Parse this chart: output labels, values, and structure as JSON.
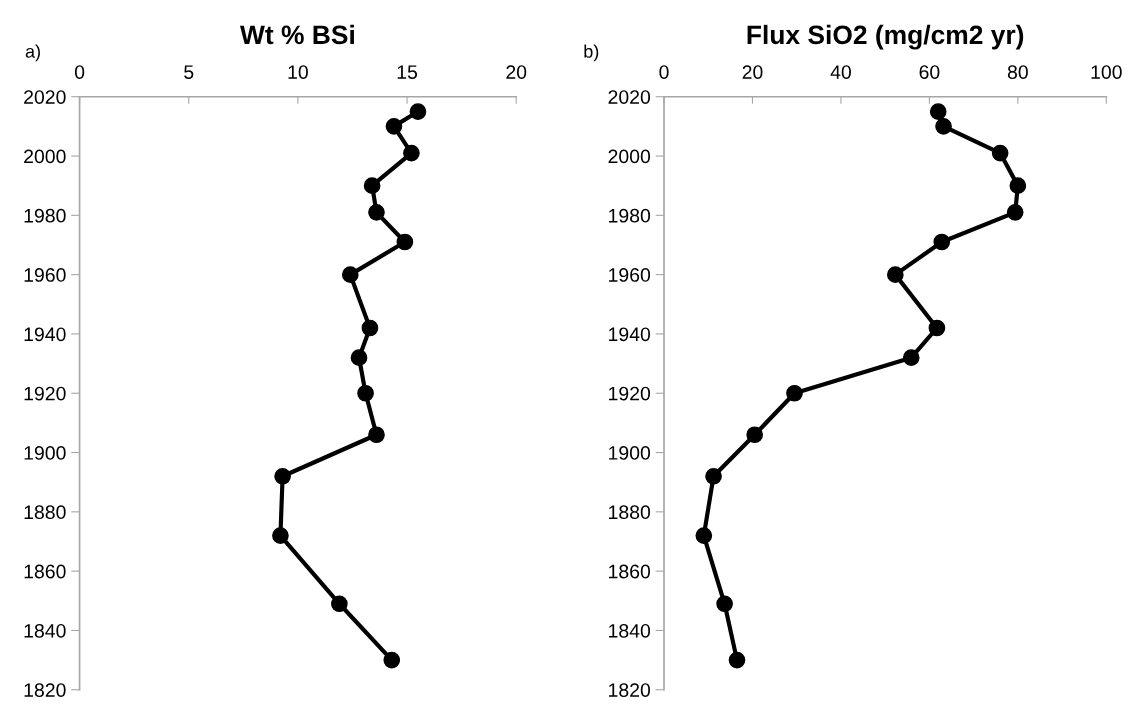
{
  "chart_data": [
    {
      "type": "line",
      "title": "Wt % BSi",
      "annotations": [
        "a)"
      ],
      "marker": "circle",
      "line_style": "solid",
      "grid": false,
      "xlim": [
        0,
        20
      ],
      "xticks": [
        0,
        5,
        10,
        15,
        20
      ],
      "ylim": [
        1820,
        2020
      ],
      "yticks": [
        1820,
        1840,
        1860,
        1880,
        1900,
        1920,
        1940,
        1960,
        1980,
        2000,
        2020
      ],
      "series": [
        {
          "color": "#000000",
          "x": [
            15.5,
            14.4,
            15.2,
            13.4,
            13.6,
            14.9,
            12.4,
            13.3,
            12.8,
            13.1,
            13.6,
            9.3,
            9.2,
            11.9,
            14.3
          ],
          "values": [
            2015,
            2010,
            2001,
            1990,
            1981,
            1971,
            1960,
            1942,
            1932,
            1920,
            1906,
            1892,
            1872,
            1849,
            1830
          ]
        }
      ]
    },
    {
      "type": "line",
      "title": "Flux SiO2 (mg/cm2 yr)",
      "annotations": [
        "b)"
      ],
      "marker": "circle",
      "line_style": "solid",
      "grid": false,
      "xlim": [
        0,
        100
      ],
      "xticks": [
        0,
        20,
        40,
        60,
        80,
        100
      ],
      "ylim": [
        1820,
        2020
      ],
      "yticks": [
        1820,
        1840,
        1860,
        1880,
        1900,
        1920,
        1940,
        1960,
        1980,
        2000,
        2020
      ],
      "series": [
        {
          "color": "#000000",
          "x": [
            62.0,
            63.2,
            76.0,
            80.0,
            79.4,
            62.8,
            52.3,
            61.7,
            55.9,
            29.5,
            20.5,
            11.2,
            9.0,
            13.7,
            16.5
          ],
          "values": [
            2015,
            2010,
            2001,
            1990,
            1981,
            1971,
            1960,
            1942,
            1932,
            1920,
            1906,
            1892,
            1872,
            1849,
            1830
          ]
        }
      ]
    }
  ]
}
